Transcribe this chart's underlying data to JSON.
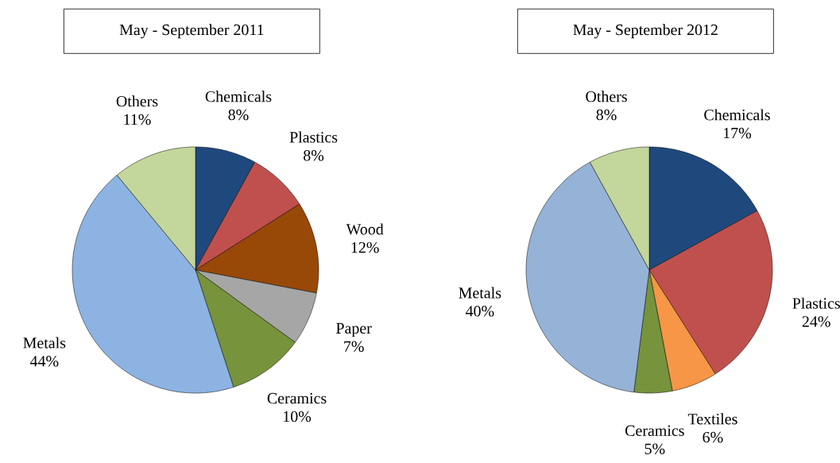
{
  "chart_data": [
    {
      "type": "pie",
      "title": "May - September 2011",
      "categories": [
        "Chemicals",
        "Plastics",
        "Wood",
        "Paper",
        "Ceramics",
        "Metals",
        "Others"
      ],
      "values": [
        8,
        8,
        12,
        7,
        10,
        44,
        11
      ],
      "value_labels": [
        "8%",
        "8%",
        "12%",
        "7%",
        "10%",
        "44%",
        "11%"
      ],
      "colors": [
        "#1f497d",
        "#c0504d",
        "#984807",
        "#a6a6a6",
        "#77933c",
        "#8db3e2",
        "#c3d69b"
      ]
    },
    {
      "type": "pie",
      "title": "May - September 2012",
      "categories": [
        "Chemicals",
        "Plastics",
        "Textiles",
        "Ceramics",
        "Metals",
        "Others"
      ],
      "values": [
        17,
        24,
        6,
        5,
        40,
        8
      ],
      "value_labels": [
        "17%",
        "24%",
        "6%",
        "5%",
        "40%",
        "8%"
      ],
      "colors": [
        "#1f497d",
        "#c0504d",
        "#f79646",
        "#77933c",
        "#95b3d7",
        "#c3d69b"
      ]
    }
  ]
}
